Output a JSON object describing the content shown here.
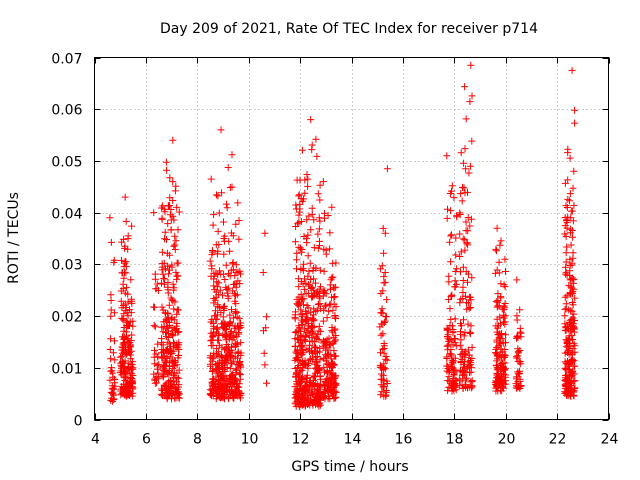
{
  "chart_data": {
    "type": "scatter",
    "title": "Day 209 of 2021, Rate Of TEC Index for receiver p714",
    "xlabel": "GPS time / hours",
    "ylabel": "ROTI / TECUs",
    "xlim": [
      4,
      24
    ],
    "ylim": [
      0,
      0.07
    ],
    "x_ticks": [
      4,
      6,
      8,
      10,
      12,
      14,
      16,
      18,
      20,
      22,
      24
    ],
    "x_tick_labels": [
      "4",
      "6",
      "8",
      "10",
      "12",
      "14",
      "16",
      "18",
      "20",
      "22",
      "24"
    ],
    "y_ticks": [
      0,
      0.01,
      0.02,
      0.03,
      0.04,
      0.05,
      0.06,
      0.07
    ],
    "y_tick_labels": [
      "0",
      "0.01",
      "0.02",
      "0.03",
      "0.04",
      "0.05",
      "0.06",
      "0.07"
    ],
    "grid": true,
    "marker": "+",
    "color": "#ff0000",
    "clusters": [
      {
        "x_start": 4.6,
        "x_end": 4.8,
        "y_min": 0.0035,
        "y_max": 0.039,
        "count": 40
      },
      {
        "x_start": 5.0,
        "x_end": 5.5,
        "y_min": 0.0045,
        "y_max": 0.043,
        "count": 200
      },
      {
        "x_start": 6.3,
        "x_end": 6.5,
        "y_min": 0.007,
        "y_max": 0.04,
        "count": 30
      },
      {
        "x_start": 6.6,
        "x_end": 7.3,
        "y_min": 0.004,
        "y_max": 0.054,
        "count": 260
      },
      {
        "x_start": 8.5,
        "x_end": 9.7,
        "y_min": 0.004,
        "y_max": 0.056,
        "count": 420
      },
      {
        "x_start": 10.5,
        "x_end": 10.7,
        "y_min": 0.007,
        "y_max": 0.036,
        "count": 8
      },
      {
        "x_start": 11.8,
        "x_end": 12.8,
        "y_min": 0.0025,
        "y_max": 0.058,
        "count": 460
      },
      {
        "x_start": 12.9,
        "x_end": 13.4,
        "y_min": 0.004,
        "y_max": 0.046,
        "count": 170
      },
      {
        "x_start": 15.1,
        "x_end": 15.4,
        "y_min": 0.0045,
        "y_max": 0.0485,
        "count": 65
      },
      {
        "x_start": 17.7,
        "x_end": 18.1,
        "y_min": 0.0055,
        "y_max": 0.051,
        "count": 110
      },
      {
        "x_start": 18.2,
        "x_end": 18.7,
        "y_min": 0.006,
        "y_max": 0.0685,
        "count": 130
      },
      {
        "x_start": 19.6,
        "x_end": 20.0,
        "y_min": 0.0055,
        "y_max": 0.037,
        "count": 150
      },
      {
        "x_start": 20.4,
        "x_end": 20.6,
        "y_min": 0.006,
        "y_max": 0.027,
        "count": 45
      },
      {
        "x_start": 22.3,
        "x_end": 22.7,
        "y_min": 0.0045,
        "y_max": 0.0675,
        "count": 220
      }
    ]
  }
}
